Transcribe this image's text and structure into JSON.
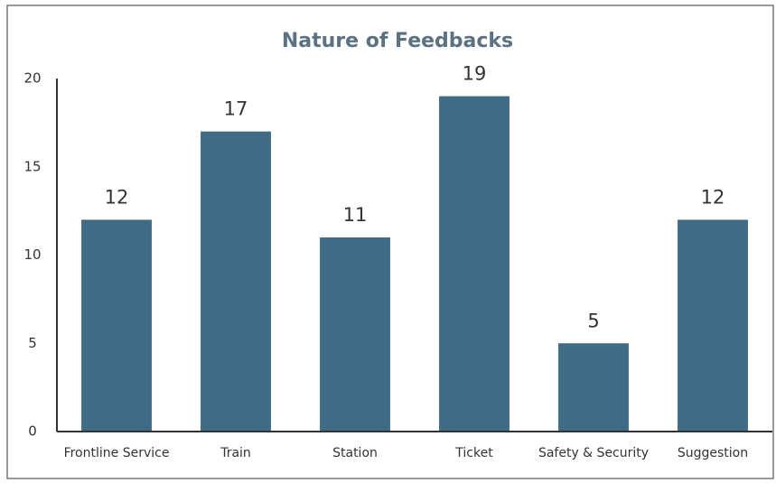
{
  "chart_data": {
    "type": "bar",
    "title": "Nature of Feedbacks",
    "categories": [
      "Frontline Service",
      "Train",
      "Station",
      "Ticket",
      "Safety & Security",
      "Suggestion"
    ],
    "values": [
      12,
      17,
      11,
      19,
      5,
      12
    ],
    "color": "#3f6c84",
    "ylim": [
      0,
      20
    ],
    "yticks": [
      0,
      5,
      10,
      15,
      20
    ],
    "grid": false
  }
}
